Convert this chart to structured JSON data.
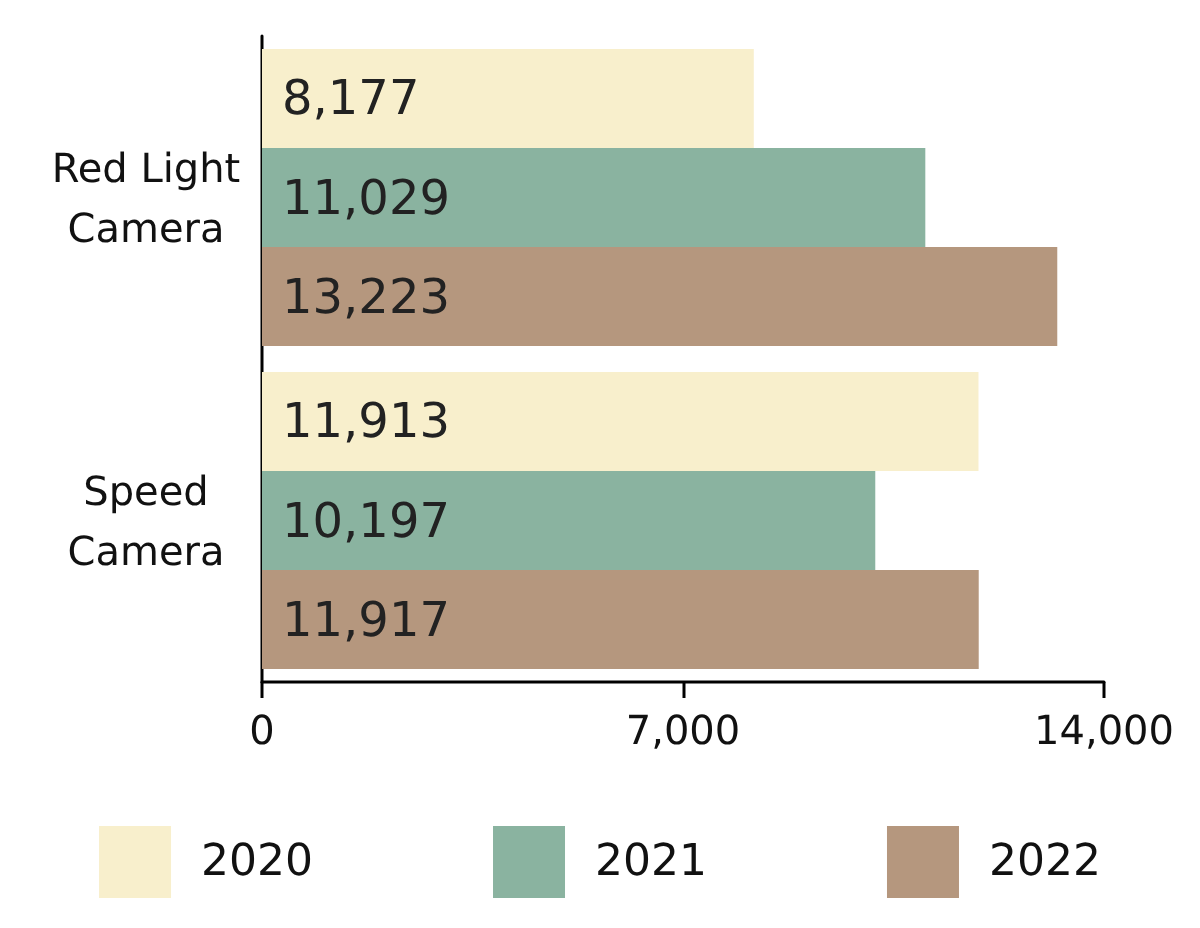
{
  "chart_data": {
    "type": "bar",
    "orientation": "horizontal",
    "categories": [
      "Red Light\nCamera",
      "Speed\nCamera"
    ],
    "series": [
      {
        "name": "2020",
        "color": "#f8efcc",
        "values": [
          8177,
          11913
        ],
        "value_labels": [
          "8,177",
          "11,913"
        ]
      },
      {
        "name": "2021",
        "color": "#8ab3a0",
        "values": [
          11029,
          10197
        ],
        "value_labels": [
          "11,029",
          "10,197"
        ]
      },
      {
        "name": "2022",
        "color": "#b5977e",
        "values": [
          13223,
          11917
        ],
        "value_labels": [
          "13,223",
          "11,917"
        ]
      }
    ],
    "xlim": [
      0,
      14000
    ],
    "xticks": [
      0,
      {
        "value": 7000,
        "label": "7,000"
      },
      {
        "value": 14000,
        "label": "14,000"
      }
    ],
    "grid": false,
    "legend": "bottom"
  }
}
